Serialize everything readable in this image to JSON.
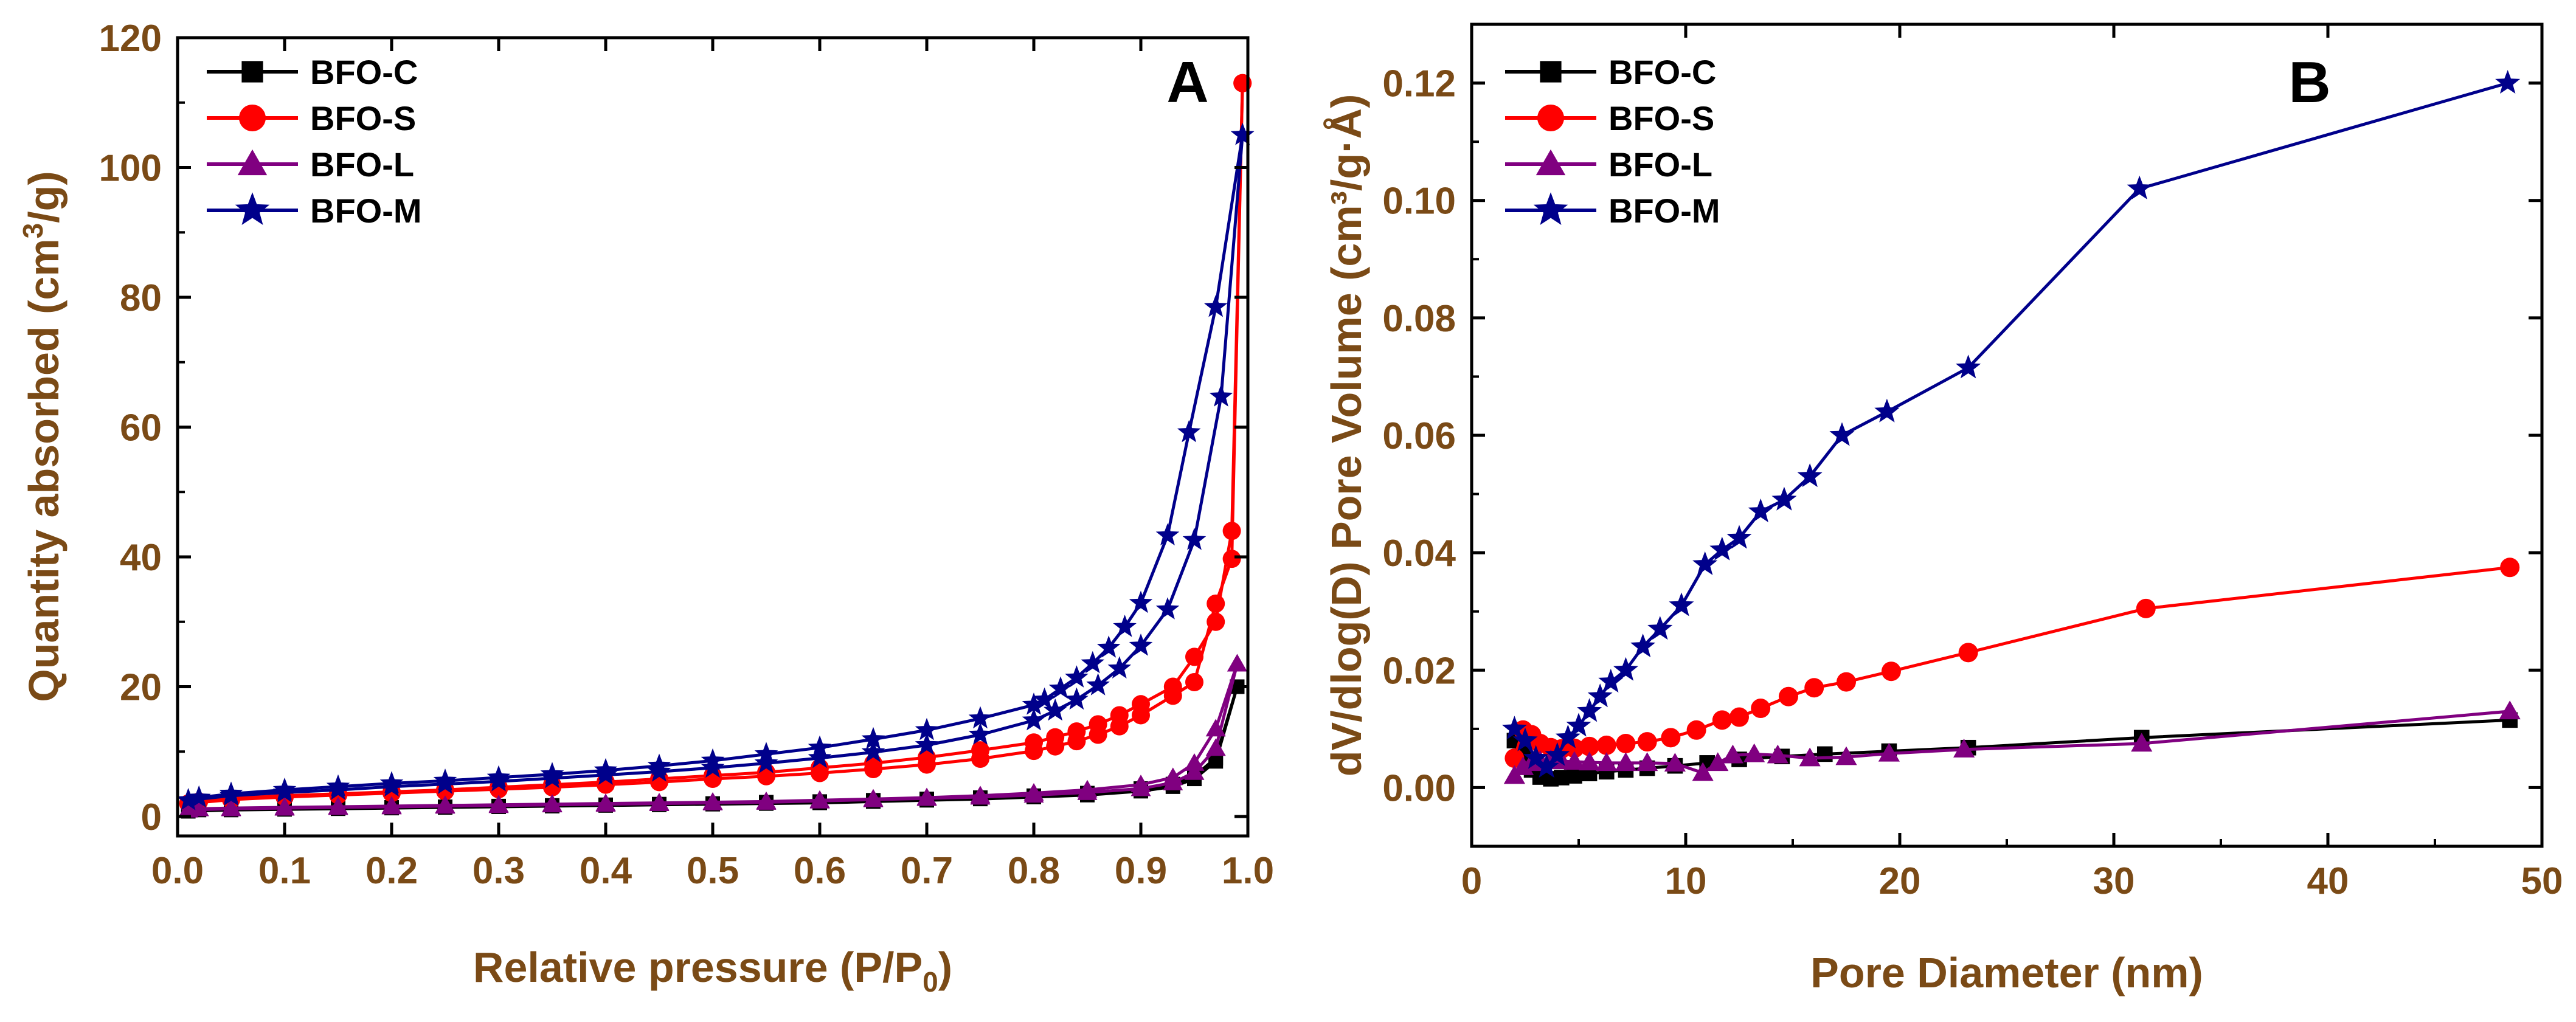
{
  "chart_data": [
    {
      "type": "line",
      "panel_label": "A",
      "xlabel": "Relative pressure (P/P",
      "xlabel_sub": "0",
      "xlabel_end": ")",
      "ylabel": "Quantity absorbed (cm",
      "ylabel_sup": "3",
      "ylabel_end": "/g)",
      "xlim": [
        0,
        1.0
      ],
      "ylim": [
        -3,
        120
      ],
      "xticks": [
        0.0,
        0.1,
        0.2,
        0.3,
        0.4,
        0.5,
        0.6,
        0.7,
        0.8,
        0.9,
        1.0
      ],
      "xtick_labels": [
        "0.0",
        "0.1",
        "0.2",
        "0.3",
        "0.4",
        "0.5",
        "0.6",
        "0.7",
        "0.8",
        "0.9",
        "1.0"
      ],
      "yticks": [
        0,
        20,
        40,
        60,
        80,
        100,
        120
      ],
      "ytick_labels": [
        "0",
        "20",
        "40",
        "60",
        "80",
        "100",
        "120"
      ],
      "legend_position": "top-left",
      "series": [
        {
          "name": "BFO-C",
          "color": "#000000",
          "marker": "square",
          "adsorption": {
            "x": [
              0.01,
              0.05,
              0.1,
              0.15,
              0.2,
              0.25,
              0.3,
              0.35,
              0.4,
              0.45,
              0.5,
              0.55,
              0.6,
              0.65,
              0.7,
              0.75,
              0.8,
              0.85,
              0.9,
              0.93,
              0.95,
              0.97,
              0.99
            ],
            "y": [
              0.8,
              1.0,
              1.1,
              1.2,
              1.3,
              1.4,
              1.5,
              1.6,
              1.7,
              1.8,
              1.9,
              2.0,
              2.1,
              2.3,
              2.5,
              2.7,
              3.0,
              3.3,
              3.9,
              4.6,
              5.8,
              8.5,
              20
            ]
          },
          "desorption": {
            "x": [
              0.99,
              0.97,
              0.95,
              0.93,
              0.9,
              0.85,
              0.8,
              0.75,
              0.7,
              0.65,
              0.6,
              0.55,
              0.5,
              0.45,
              0.4,
              0.35,
              0.3,
              0.25,
              0.2,
              0.15,
              0.1,
              0.05,
              0.02
            ],
            "y": [
              20,
              9,
              6.2,
              5.0,
              4.3,
              3.6,
              3.2,
              2.9,
              2.7,
              2.5,
              2.3,
              2.2,
              2.0,
              1.9,
              1.8,
              1.7,
              1.6,
              1.5,
              1.4,
              1.3,
              1.2,
              1.1,
              1.0
            ]
          }
        },
        {
          "name": "BFO-S",
          "color": "#ff0000",
          "marker": "circle",
          "adsorption": {
            "x": [
              0.01,
              0.05,
              0.1,
              0.15,
              0.2,
              0.25,
              0.3,
              0.35,
              0.4,
              0.45,
              0.5,
              0.55,
              0.6,
              0.65,
              0.7,
              0.75,
              0.8,
              0.82,
              0.84,
              0.86,
              0.88,
              0.9,
              0.93,
              0.95,
              0.97,
              0.985,
              0.995
            ],
            "y": [
              2.0,
              2.6,
              3.0,
              3.3,
              3.6,
              3.9,
              4.2,
              4.5,
              4.9,
              5.3,
              5.8,
              6.2,
              6.7,
              7.3,
              8.0,
              8.9,
              10.1,
              10.8,
              11.6,
              12.6,
              13.9,
              15.6,
              18.6,
              20.7,
              32.8,
              39.7,
              113
            ]
          },
          "desorption": {
            "x": [
              0.995,
              0.985,
              0.97,
              0.95,
              0.93,
              0.9,
              0.88,
              0.86,
              0.84,
              0.82,
              0.8,
              0.75,
              0.7,
              0.65,
              0.6,
              0.55,
              0.5,
              0.45,
              0.4,
              0.35,
              0.3,
              0.25,
              0.2,
              0.15,
              0.1,
              0.05,
              0.02
            ],
            "y": [
              113,
              44,
              30,
              24.6,
              20.0,
              17.3,
              15.6,
              14.2,
              13.1,
              12.2,
              11.4,
              10.2,
              9.1,
              8.2,
              7.5,
              6.8,
              6.3,
              5.8,
              5.3,
              4.9,
              4.5,
              4.1,
              3.8,
              3.5,
              3.2,
              2.8,
              2.3
            ]
          }
        },
        {
          "name": "BFO-L",
          "color": "#800080",
          "marker": "triangle",
          "adsorption": {
            "x": [
              0.01,
              0.05,
              0.1,
              0.15,
              0.2,
              0.25,
              0.3,
              0.35,
              0.4,
              0.45,
              0.5,
              0.55,
              0.6,
              0.65,
              0.7,
              0.75,
              0.8,
              0.85,
              0.9,
              0.93,
              0.95,
              0.97,
              0.99
            ],
            "y": [
              1.0,
              1.2,
              1.3,
              1.4,
              1.5,
              1.6,
              1.7,
              1.8,
              1.9,
              2.0,
              2.1,
              2.2,
              2.4,
              2.6,
              2.8,
              3.0,
              3.3,
              3.7,
              4.3,
              5.2,
              6.8,
              10.5,
              23.5
            ]
          },
          "desorption": {
            "x": [
              0.99,
              0.97,
              0.95,
              0.93,
              0.9,
              0.85,
              0.8,
              0.75,
              0.7,
              0.65,
              0.6,
              0.55,
              0.5,
              0.45,
              0.4,
              0.35,
              0.3,
              0.25,
              0.2,
              0.15,
              0.1,
              0.05,
              0.02
            ],
            "y": [
              23.5,
              13.5,
              8.2,
              6.0,
              4.9,
              4.1,
              3.6,
              3.2,
              2.9,
              2.7,
              2.5,
              2.3,
              2.2,
              2.1,
              2.0,
              1.9,
              1.8,
              1.7,
              1.6,
              1.5,
              1.4,
              1.3,
              1.2
            ]
          }
        },
        {
          "name": "BFO-M",
          "color": "#00008b",
          "marker": "star",
          "adsorption": {
            "x": [
              0.01,
              0.05,
              0.1,
              0.15,
              0.2,
              0.25,
              0.3,
              0.35,
              0.4,
              0.45,
              0.5,
              0.55,
              0.6,
              0.65,
              0.7,
              0.75,
              0.8,
              0.82,
              0.84,
              0.86,
              0.88,
              0.9,
              0.925,
              0.95,
              0.975,
              0.995
            ],
            "y": [
              2.5,
              3.2,
              3.7,
              4.1,
              4.6,
              5.0,
              5.4,
              5.9,
              6.4,
              6.9,
              7.5,
              8.2,
              9.0,
              9.9,
              11.0,
              12.6,
              14.8,
              16.3,
              18.0,
              20.2,
              22.8,
              26.3,
              31.9,
              42.6,
              64.7,
              105
            ]
          },
          "desorption": {
            "x": [
              0.995,
              0.97,
              0.945,
              0.925,
              0.9,
              0.885,
              0.87,
              0.855,
              0.84,
              0.825,
              0.81,
              0.8,
              0.75,
              0.7,
              0.65,
              0.6,
              0.55,
              0.5,
              0.45,
              0.4,
              0.35,
              0.3,
              0.25,
              0.2,
              0.15,
              0.1,
              0.05,
              0.02
            ],
            "y": [
              105,
              78.5,
              59.2,
              43.3,
              32.9,
              29.2,
              26.0,
              23.6,
              21.4,
              19.7,
              18.0,
              17.2,
              15.1,
              13.3,
              11.9,
              10.6,
              9.6,
              8.6,
              7.8,
              7.1,
              6.5,
              6.0,
              5.5,
              5.1,
              4.6,
              4.1,
              3.5,
              2.9
            ]
          }
        }
      ]
    },
    {
      "type": "line",
      "panel_label": "B",
      "xlabel": "Pore Diameter (nm)",
      "ylabel": "dV/dlog(D) Pore Volume (cm³/g·Å)",
      "xlim": [
        0,
        50
      ],
      "ylim": [
        -0.01,
        0.13
      ],
      "xticks": [
        0,
        10,
        20,
        30,
        40,
        50
      ],
      "xtick_labels": [
        "0",
        "10",
        "20",
        "30",
        "40",
        "50"
      ],
      "yticks": [
        0.0,
        0.02,
        0.04,
        0.06,
        0.08,
        0.1,
        0.12
      ],
      "ytick_labels": [
        "0.00",
        "0.02",
        "0.04",
        "0.06",
        "0.08",
        "0.10",
        "0.12"
      ],
      "legend_position": "top-left",
      "series": [
        {
          "name": "BFO-C",
          "color": "#000000",
          "marker": "square",
          "x": [
            2.0,
            2.4,
            2.8,
            3.2,
            3.7,
            4.2,
            4.8,
            5.5,
            6.3,
            7.2,
            8.2,
            9.5,
            11.0,
            12.5,
            14.5,
            16.5,
            19.5,
            23.2,
            31.3,
            48.5
          ],
          "y": [
            0.008,
            0.006,
            0.003,
            0.0018,
            0.0015,
            0.0017,
            0.002,
            0.0024,
            0.0027,
            0.003,
            0.0033,
            0.0037,
            0.0042,
            0.0048,
            0.0053,
            0.0057,
            0.0062,
            0.0068,
            0.0085,
            0.0115
          ]
        },
        {
          "name": "BFO-S",
          "color": "#ff0000",
          "marker": "circle",
          "x": [
            2.0,
            2.4,
            2.8,
            3.2,
            3.7,
            4.2,
            4.8,
            5.5,
            6.3,
            7.2,
            8.2,
            9.3,
            10.5,
            11.7,
            12.5,
            13.5,
            14.8,
            16.0,
            17.5,
            19.6,
            23.2,
            31.5,
            48.5
          ],
          "y": [
            0.005,
            0.0098,
            0.009,
            0.0075,
            0.0068,
            0.0066,
            0.0067,
            0.007,
            0.0072,
            0.0075,
            0.0078,
            0.0085,
            0.0098,
            0.0115,
            0.012,
            0.0135,
            0.0155,
            0.017,
            0.018,
            0.0198,
            0.023,
            0.0305,
            0.0375
          ]
        },
        {
          "name": "BFO-L",
          "color": "#800080",
          "marker": "triangle",
          "x": [
            2.0,
            2.4,
            2.8,
            3.2,
            3.7,
            4.2,
            4.8,
            5.5,
            6.3,
            7.2,
            8.2,
            9.5,
            10.8,
            11.5,
            12.2,
            13.2,
            14.3,
            15.8,
            17.5,
            19.5,
            23.0,
            31.3,
            48.5
          ],
          "y": [
            0.002,
            0.0035,
            0.0042,
            0.0045,
            0.0047,
            0.0045,
            0.0044,
            0.0043,
            0.0042,
            0.0042,
            0.0042,
            0.0041,
            0.0025,
            0.0042,
            0.0055,
            0.0057,
            0.0055,
            0.005,
            0.0052,
            0.0058,
            0.0065,
            0.0075,
            0.013
          ]
        },
        {
          "name": "BFO-M",
          "color": "#00008b",
          "marker": "star",
          "x": [
            2.0,
            2.5,
            3.0,
            3.5,
            4.0,
            4.5,
            5.0,
            5.5,
            6.0,
            6.5,
            7.2,
            8.0,
            8.8,
            9.8,
            10.9,
            11.7,
            12.5,
            13.5,
            14.6,
            15.8,
            17.3,
            19.4,
            23.2,
            31.2,
            48.4
          ],
          "y": [
            0.01,
            0.008,
            0.005,
            0.0035,
            0.0055,
            0.0085,
            0.0105,
            0.013,
            0.0155,
            0.018,
            0.02,
            0.024,
            0.027,
            0.031,
            0.038,
            0.0405,
            0.0425,
            0.047,
            0.049,
            0.053,
            0.06,
            0.064,
            0.0715,
            0.102,
            0.12
          ]
        }
      ]
    }
  ]
}
